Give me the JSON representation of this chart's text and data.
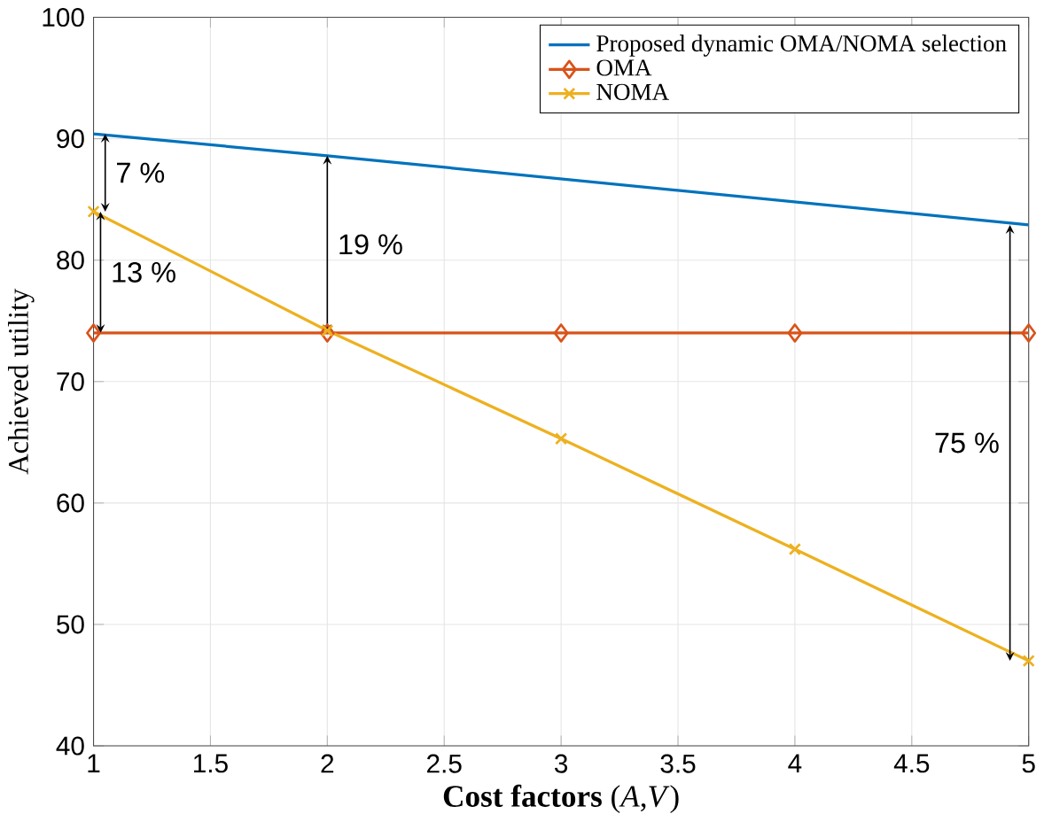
{
  "chart_data": {
    "type": "line",
    "xlabel": "**Cost factors** (*A*,*V*)",
    "ylabel": "Achieved utility",
    "x": [
      1,
      2,
      3,
      4,
      5
    ],
    "series": [
      {
        "name": "Proposed dynamic OMA/NOMA selection",
        "color": "#0072bd",
        "marker": "none",
        "values": [
          90.4,
          88.6,
          86.7,
          84.8,
          82.9
        ]
      },
      {
        "name": "OMA",
        "color": "#d95319",
        "marker": "diamond",
        "values": [
          74.0,
          74.0,
          74.0,
          74.0,
          74.0
        ]
      },
      {
        "name": "NOMA",
        "color": "#edb120",
        "marker": "cross",
        "values": [
          84.0,
          74.2,
          65.3,
          56.2,
          47.0
        ]
      }
    ],
    "xlim": [
      1,
      5
    ],
    "ylim": [
      40,
      100
    ],
    "xticks": [
      1,
      1.5,
      2,
      2.5,
      3,
      3.5,
      4,
      4.5,
      5
    ],
    "yticks": [
      40,
      50,
      60,
      70,
      80,
      90,
      100
    ],
    "grid": true,
    "legend": "top right",
    "line_style": "solid",
    "annotations": [
      "7 %",
      "13 %",
      "19 %",
      "75 %"
    ]
  }
}
